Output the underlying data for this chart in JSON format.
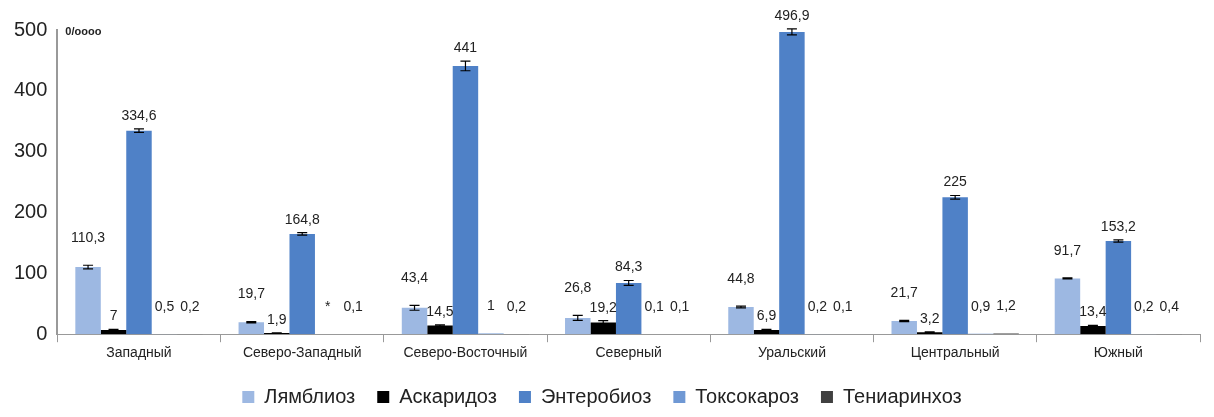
{
  "chart_data": {
    "type": "bar",
    "ylabel": "0/oooo",
    "categories": [
      "Западный",
      "Северо-Западный",
      "Северо-Восточный",
      "Северный",
      "Уральский",
      "Центральный",
      "Южный"
    ],
    "ylim": [
      0,
      500
    ],
    "yticks": [
      0,
      100,
      200,
      300,
      400,
      500
    ],
    "legend": "bottom",
    "series": [
      {
        "name": "Лямблиоз",
        "color": "#9db8e2",
        "values": [
          110.3,
          19.7,
          43.4,
          26.8,
          44.8,
          21.7,
          91.7
        ],
        "errors": [
          3,
          1,
          4,
          4,
          1.5,
          1,
          1
        ],
        "value_labels": [
          "110,3",
          "19,7",
          "43,4",
          "26,8",
          "44,8",
          "21,7",
          "91,7"
        ]
      },
      {
        "name": "Аскаридоз",
        "color": "#000000",
        "values": [
          7,
          1.9,
          14.5,
          19.2,
          6.9,
          3.2,
          13.4
        ],
        "errors": [
          1,
          0.3,
          1,
          3,
          1,
          0.5,
          1
        ],
        "value_labels": [
          "7",
          "1,9",
          "14,5",
          "19,2",
          "6,9",
          "3,2",
          "13,4"
        ]
      },
      {
        "name": "Энтеробиоз",
        "color": "#4f81c7",
        "values": [
          334.6,
          164.8,
          441,
          84.3,
          496.9,
          225,
          153.2
        ],
        "errors": [
          3,
          2,
          8,
          4,
          5,
          3,
          2
        ],
        "value_labels": [
          "334,6",
          "164,8",
          "441",
          "84,3",
          "496,9",
          "225",
          "153,2"
        ]
      },
      {
        "name": "Токсокароз",
        "color": "#6f98d4",
        "values": [
          0.5,
          null,
          1,
          0.1,
          0.2,
          0.9,
          0.2
        ],
        "value_labels": [
          "0,5",
          "*",
          "1",
          "0,1",
          "0,2",
          "0,9",
          "0,2"
        ]
      },
      {
        "name": "Тениаринхоз",
        "color": "#404040",
        "values": [
          0.2,
          0.1,
          0.2,
          0.1,
          0.1,
          1.2,
          0.4
        ],
        "value_labels": [
          "0,2",
          "0,1",
          "0,2",
          "0,1",
          "0,1",
          "1,2",
          "0,4"
        ]
      }
    ]
  }
}
